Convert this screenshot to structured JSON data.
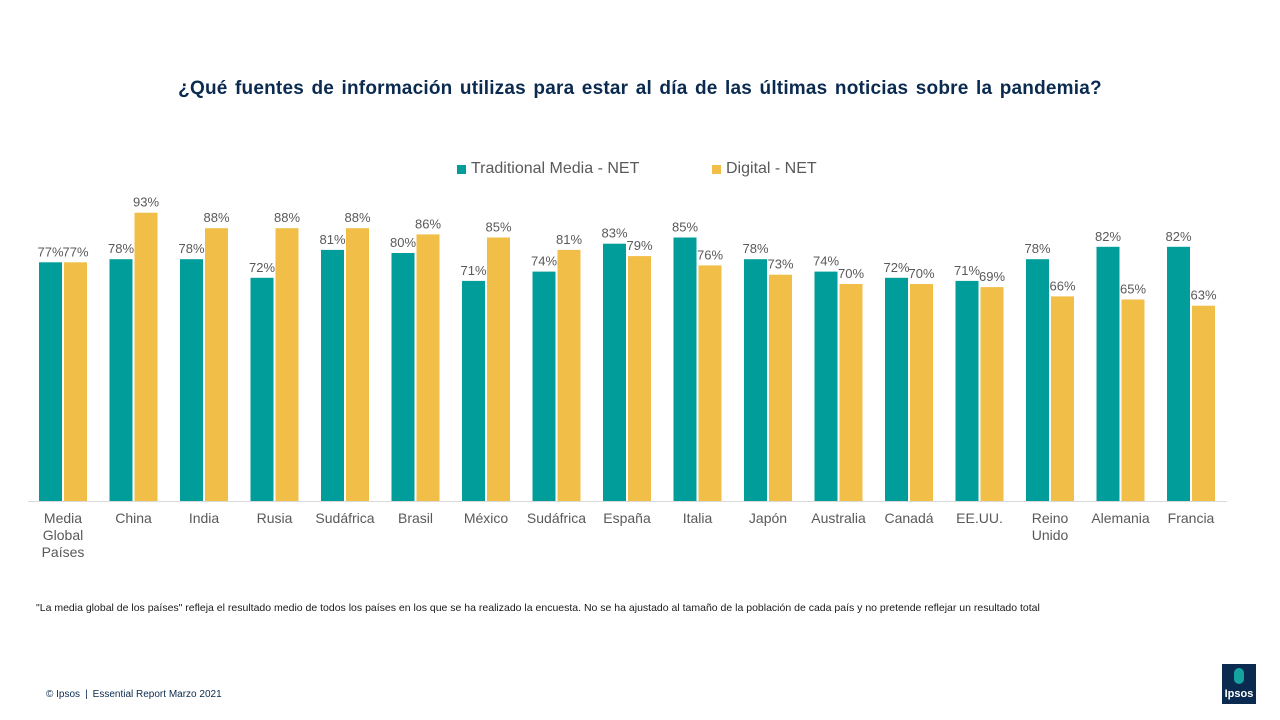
{
  "chart_data": {
    "type": "bar",
    "title": "¿Qué fuentes de información utilizas para estar al día de las últimas noticias sobre la pandemia?",
    "categories": [
      "Media Global Países",
      "China",
      "India",
      "Rusia",
      "Sudáfrica",
      "Brasil",
      "México",
      "Sudáfrica",
      "España",
      "Italia",
      "Japón",
      "Australia",
      "Canadá",
      "EE.UU.",
      "Reino Unido",
      "Alemania",
      "Francia"
    ],
    "category_lines": [
      [
        "Media",
        "Global",
        "Países"
      ],
      [
        "China"
      ],
      [
        "India"
      ],
      [
        "Rusia"
      ],
      [
        "Sudáfrica"
      ],
      [
        "Brasil"
      ],
      [
        "México"
      ],
      [
        "Sudáfrica"
      ],
      [
        "España"
      ],
      [
        "Italia"
      ],
      [
        "Japón"
      ],
      [
        "Australia"
      ],
      [
        "Canadá"
      ],
      [
        "EE.UU."
      ],
      [
        "Reino",
        "Unido"
      ],
      [
        "Alemania"
      ],
      [
        "Francia"
      ]
    ],
    "series": [
      {
        "name": "Traditional Media - NET",
        "color": "#009d9a",
        "values": [
          77,
          78,
          78,
          72,
          81,
          80,
          71,
          74,
          83,
          85,
          78,
          74,
          72,
          71,
          78,
          82,
          82
        ]
      },
      {
        "name": "Digital - NET",
        "color": "#f1be48",
        "values": [
          77,
          93,
          88,
          88,
          88,
          86,
          85,
          81,
          79,
          76,
          73,
          70,
          70,
          69,
          66,
          65,
          63
        ]
      }
    ],
    "value_suffix": "%",
    "ylim": [
      0,
      100
    ],
    "xlabel": "",
    "ylabel": "",
    "grid": false,
    "legend": "top-center"
  },
  "footnote": "\"La media global de los países\" refleja el resultado medio de todos los países en los que se ha realizado la encuesta. No se ha ajustado al tamaño de la población de cada país y no pretende reflejar un resultado total",
  "footer": {
    "copyright": "© Ipsos",
    "separator": "|",
    "report": "Essential Report  Marzo 2021"
  },
  "logo": {
    "text": "Ipsos",
    "color": "#0a2a4f"
  }
}
